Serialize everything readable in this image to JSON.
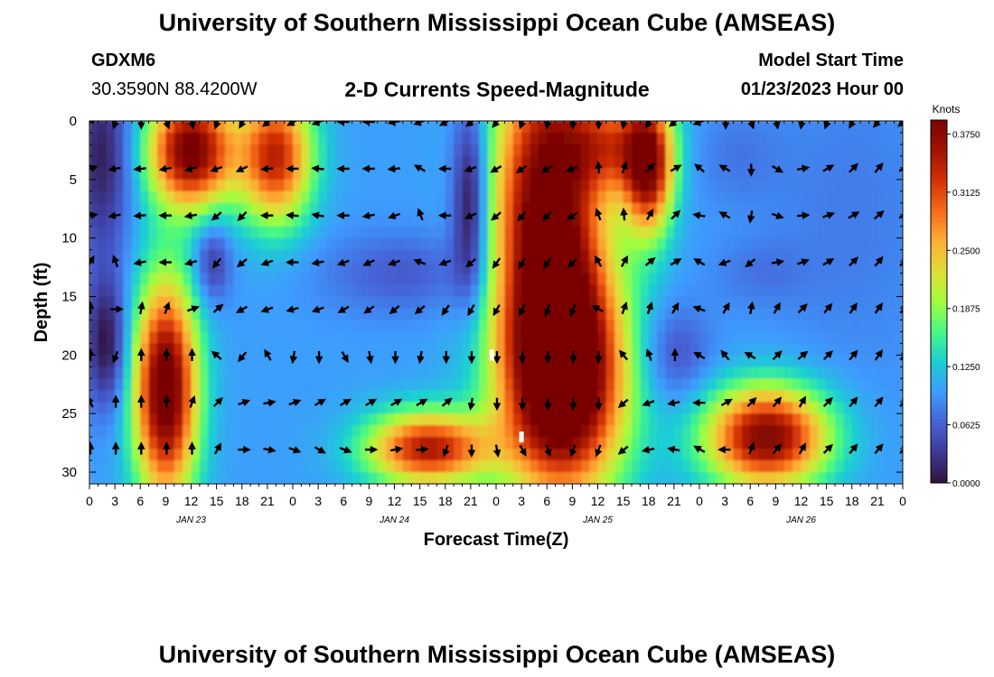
{
  "header": {
    "title": "University of Southern Mississippi Ocean Cube (AMSEAS)",
    "station_id": "GDXM6",
    "coordinates": "30.3590N  88.4200W",
    "plot_title": "2-D Currents Speed-Magnitude",
    "model_start_label": "Model Start Time",
    "model_start_value": "01/23/2023 Hour 00"
  },
  "footer": {
    "title": "University of Southern Mississippi Ocean Cube (AMSEAS)"
  },
  "chart_data": {
    "type": "heatmap",
    "title": "2-D Currents Speed-Magnitude",
    "xlabel": "Forecast Time(Z)",
    "ylabel": "Depth (ft)",
    "x_units": "hours since model start",
    "xlim": [
      0,
      96
    ],
    "ylim": [
      0,
      31
    ],
    "y_inverted": true,
    "x_ticks": [
      0,
      3,
      6,
      9,
      12,
      15,
      18,
      21,
      24,
      27,
      30,
      33,
      36,
      39,
      42,
      45,
      48,
      51,
      54,
      57,
      60,
      63,
      66,
      69,
      72,
      75,
      78,
      81,
      84,
      87,
      90,
      93,
      96
    ],
    "x_tick_labels": [
      "0",
      "3",
      "6",
      "9",
      "12",
      "15",
      "18",
      "21",
      "0",
      "3",
      "6",
      "9",
      "12",
      "15",
      "18",
      "21",
      "0",
      "3",
      "6",
      "9",
      "12",
      "15",
      "18",
      "21",
      "0",
      "3",
      "6",
      "9",
      "12",
      "15",
      "18",
      "21",
      "0"
    ],
    "y_ticks": [
      0,
      5,
      10,
      15,
      20,
      25,
      30
    ],
    "y_tick_labels": [
      "0",
      "5",
      "10",
      "15",
      "20",
      "25",
      "30"
    ],
    "date_labels": [
      {
        "x": 12,
        "label": "JAN 23"
      },
      {
        "x": 36,
        "label": "JAN 24"
      },
      {
        "x": 60,
        "label": "JAN 25"
      },
      {
        "x": 84,
        "label": "JAN 26"
      }
    ],
    "colorbar": {
      "units_label": "Knots",
      "min": 0,
      "max": 0.39,
      "ticks": [
        0.0,
        0.0625,
        0.125,
        0.1875,
        0.25,
        0.3125,
        0.375
      ],
      "tick_labels": [
        "0.0000",
        "0.0625",
        "0.1250",
        "0.1875",
        "0.2500",
        "0.3125",
        "0.3750"
      ],
      "colors": [
        "#30123b",
        "#3e3994",
        "#4662d7",
        "#3e9bfe",
        "#1bcfd4",
        "#46f884",
        "#a4fc3c",
        "#e1dd37",
        "#fdae35",
        "#f66b19",
        "#d23105",
        "#a11201",
        "#7a0403"
      ]
    },
    "speed_blobs": [
      {
        "t": 1.5,
        "d": 3,
        "st": 2.5,
        "sd": 6,
        "v": -0.09
      },
      {
        "t": 12,
        "d": 2.5,
        "st": 3.5,
        "sd": 3.5,
        "v": 0.3
      },
      {
        "t": 22,
        "d": 3,
        "st": 3,
        "sd": 4,
        "v": 0.24
      },
      {
        "t": 9,
        "d": 23,
        "st": 2.6,
        "sd": 6.5,
        "v": 0.32
      },
      {
        "t": 2,
        "d": 19,
        "st": 1.8,
        "sd": 4,
        "v": -0.1
      },
      {
        "t": 14.5,
        "d": 12,
        "st": 1.5,
        "sd": 2.5,
        "v": -0.07
      },
      {
        "t": 37,
        "d": 13,
        "st": 7,
        "sd": 2.5,
        "v": -0.04
      },
      {
        "t": 45,
        "d": 7,
        "st": 1.5,
        "sd": 6,
        "v": -0.12
      },
      {
        "t": 40,
        "d": 28,
        "st": 5,
        "sd": 2.2,
        "v": 0.25
      },
      {
        "t": 54,
        "d": 7,
        "st": 4.5,
        "sd": 10,
        "v": 0.3
      },
      {
        "t": 56,
        "d": 22,
        "st": 5,
        "sd": 7,
        "v": 0.35
      },
      {
        "t": 62,
        "d": 2,
        "st": 4,
        "sd": 3,
        "v": 0.15
      },
      {
        "t": 66,
        "d": 4,
        "st": 2,
        "sd": 4,
        "v": 0.26
      },
      {
        "t": 76,
        "d": 3,
        "st": 4,
        "sd": 3,
        "v": -0.02
      },
      {
        "t": 80,
        "d": 27,
        "st": 5,
        "sd": 3,
        "v": 0.29
      },
      {
        "t": 69,
        "d": 20,
        "st": 3,
        "sd": 3,
        "v": -0.05
      },
      {
        "t": 79,
        "d": 13,
        "st": 4,
        "sd": 2,
        "v": -0.02
      },
      {
        "t": 90,
        "d": 8,
        "st": 8,
        "sd": 10,
        "v": -0.02
      }
    ],
    "vector_times": [
      0,
      3,
      6,
      9,
      12,
      15,
      18,
      21,
      24,
      27,
      30,
      33,
      36,
      39,
      42,
      45,
      48,
      51,
      54,
      57,
      60,
      63,
      66,
      69,
      72,
      75,
      78,
      81,
      84,
      87,
      90,
      93,
      96
    ],
    "vector_depths": [
      0,
      4,
      8,
      12,
      16,
      20,
      24,
      28
    ],
    "vector_directions_deg": [
      [
        45,
        200,
        180,
        160,
        170,
        200,
        210,
        230,
        240,
        250,
        270,
        270,
        260,
        250,
        240,
        230,
        220,
        200,
        190,
        185,
        180,
        190,
        210,
        230,
        250,
        180,
        160,
        170,
        190,
        200,
        210,
        220,
        230
      ],
      [
        70,
        260,
        265,
        260,
        255,
        250,
        245,
        265,
        270,
        275,
        270,
        270,
        265,
        300,
        270,
        250,
        240,
        235,
        240,
        250,
        355,
        20,
        45,
        60,
        310,
        300,
        180,
        120,
        80,
        60,
        45,
        40,
        60
      ],
      [
        80,
        260,
        265,
        270,
        260,
        230,
        225,
        270,
        275,
        280,
        270,
        260,
        250,
        340,
        270,
        245,
        230,
        220,
        225,
        235,
        340,
        355,
        30,
        45,
        280,
        300,
        190,
        110,
        85,
        70,
        60,
        50,
        60
      ],
      [
        30,
        340,
        260,
        270,
        255,
        220,
        230,
        250,
        270,
        260,
        250,
        245,
        250,
        290,
        250,
        230,
        215,
        210,
        215,
        225,
        330,
        30,
        50,
        60,
        300,
        250,
        230,
        80,
        70,
        60,
        45,
        40,
        45
      ],
      [
        0,
        90,
        10,
        20,
        70,
        50,
        240,
        250,
        255,
        250,
        240,
        235,
        230,
        230,
        215,
        210,
        210,
        205,
        200,
        200,
        300,
        20,
        20,
        30,
        290,
        30,
        10,
        30,
        45,
        40,
        35,
        35,
        40
      ],
      [
        0,
        200,
        0,
        0,
        0,
        310,
        220,
        330,
        190,
        180,
        150,
        170,
        180,
        190,
        180,
        180,
        180,
        180,
        180,
        180,
        180,
        320,
        340,
        0,
        300,
        320,
        300,
        45,
        50,
        45,
        40,
        35,
        40
      ],
      [
        330,
        0,
        0,
        0,
        20,
        45,
        70,
        80,
        70,
        60,
        60,
        60,
        60,
        60,
        50,
        190,
        180,
        180,
        180,
        180,
        180,
        230,
        250,
        260,
        270,
        60,
        45,
        40,
        30,
        45,
        40,
        40,
        45
      ],
      [
        0,
        0,
        0,
        0,
        0,
        30,
        90,
        100,
        110,
        120,
        110,
        90,
        80,
        85,
        200,
        180,
        170,
        150,
        160,
        200,
        200,
        230,
        260,
        280,
        300,
        270,
        20,
        40,
        30,
        45,
        40,
        40,
        45
      ]
    ],
    "missing_markers": [
      {
        "t": 47.5,
        "d": 20
      },
      {
        "t": 51,
        "d": 27
      }
    ]
  }
}
